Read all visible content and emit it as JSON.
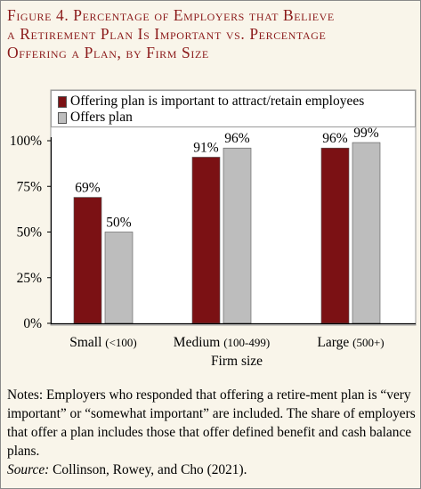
{
  "figure": {
    "title_lines": [
      "Figure 4. Percentage of Employers that Believe",
      "a Retirement Plan Is Important vs. Percentage",
      "Offering a Plan, by Firm Size"
    ]
  },
  "notes": {
    "text": "Notes: Employers who responded that offering a retire-ment plan is “very important” or “somewhat important” are included.  The share of employers that offer a plan includes those that offer defined benefit and cash balance plans.",
    "source_label": "Source:",
    "source_text": " Collinson, Rowey, and Cho (2021)."
  },
  "chart_data": {
    "type": "bar",
    "categories": [
      "Small",
      "Medium",
      "Large"
    ],
    "category_ranges": [
      "(<100)",
      "(100-499)",
      "(500+)"
    ],
    "xlabel": "Firm size",
    "ylabel": "",
    "ylim": [
      0,
      100
    ],
    "yticks": [
      "0%",
      "25%",
      "50%",
      "75%",
      "100%"
    ],
    "series": [
      {
        "name": "Offering plan is important to attract/retain employees",
        "values": [
          69,
          91,
          96
        ],
        "labels": [
          "69%",
          "91%",
          "96%"
        ],
        "color": "#7b1114"
      },
      {
        "name": "Offers plan",
        "values": [
          50,
          96,
          99
        ],
        "labels": [
          "50%",
          "96%",
          "99%"
        ],
        "color": "#bdbdbd"
      }
    ],
    "legend_position": "top",
    "grid": false
  }
}
